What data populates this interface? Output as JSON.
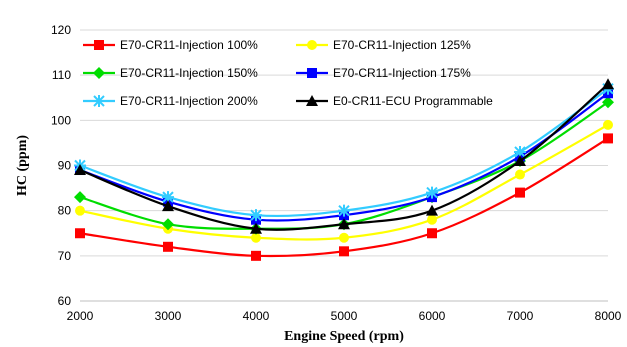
{
  "chart_data": {
    "type": "line",
    "title": "",
    "xlabel": "Engine Speed (rpm)",
    "ylabel": "HC (ppm)",
    "x": [
      2000,
      3000,
      4000,
      5000,
      6000,
      7000,
      8000
    ],
    "xlim": [
      2000,
      8000
    ],
    "ylim": [
      60,
      120
    ],
    "xticks": [
      "2000",
      "3000",
      "4000",
      "5000",
      "6000",
      "7000",
      "8000"
    ],
    "yticks": [
      "60",
      "70",
      "80",
      "90",
      "100",
      "110",
      "120"
    ],
    "grid": "horizontal",
    "legend_position": "top",
    "series": [
      {
        "name": "E70-CR11-Injection 100%",
        "color": "#ff0000",
        "marker": "square",
        "values": [
          75,
          72,
          70,
          71,
          75,
          84,
          96
        ]
      },
      {
        "name": "E70-CR11-Injection 125%",
        "color": "#ffff00",
        "marker": "circle",
        "values": [
          80,
          76,
          74,
          74,
          78,
          88,
          99
        ]
      },
      {
        "name": "E70-CR11-Injection 150%",
        "color": "#00dd00",
        "marker": "diamond",
        "values": [
          83,
          77,
          76,
          77,
          83,
          91,
          104
        ]
      },
      {
        "name": "E70-CR11-Injection 175%",
        "color": "#0000ff",
        "marker": "square",
        "values": [
          89,
          82,
          78,
          79,
          83,
          92,
          106
        ]
      },
      {
        "name": "E70-CR11-Injection 200%",
        "color": "#33ccff",
        "marker": "star",
        "values": [
          90,
          83,
          79,
          80,
          84,
          93,
          107
        ]
      },
      {
        "name": "E0-CR11-ECU Programmable",
        "color": "#000000",
        "marker": "triangle",
        "values": [
          89,
          81,
          76,
          77,
          80,
          91,
          108
        ]
      }
    ]
  }
}
